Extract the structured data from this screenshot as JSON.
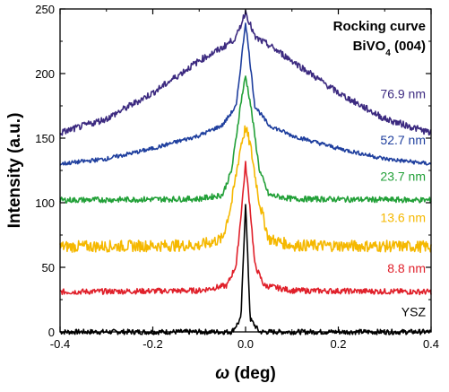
{
  "chart_data": {
    "type": "line",
    "title_line1": "Rocking curve",
    "title_line2_main": "BiVO",
    "title_line2_sub": "4",
    "title_line2_tail": " (004)",
    "xlabel_symbol": "ω",
    "xlabel_unit": " (deg)",
    "ylabel": "Intensity (a.u.)",
    "xlim": [
      -0.4,
      0.4
    ],
    "ylim": [
      0,
      250
    ],
    "x_ticks": [
      -0.4,
      -0.2,
      0.0,
      0.2,
      0.4
    ],
    "x_tick_labels": [
      "-0.4",
      "-0.2",
      "0.0",
      "0.2",
      "0.4"
    ],
    "y_ticks": [
      0,
      50,
      100,
      150,
      200,
      250
    ],
    "y_tick_labels": [
      "0",
      "50",
      "100",
      "150",
      "200",
      "250"
    ],
    "series": [
      {
        "name": "YSZ",
        "color": "#000000",
        "baseline": 0,
        "x": [
          -0.4,
          -0.03,
          -0.01,
          -0.005,
          0.0,
          0.005,
          0.01,
          0.03,
          0.4
        ],
        "y": [
          0,
          0,
          10,
          55,
          100,
          55,
          10,
          0,
          0
        ],
        "label": "YSZ"
      },
      {
        "name": "8.8 nm",
        "color": "#e0202a",
        "baseline": 31,
        "x": [
          -0.4,
          -0.1,
          -0.04,
          -0.02,
          -0.01,
          0.0,
          0.01,
          0.02,
          0.04,
          0.1,
          0.4
        ],
        "y": [
          31,
          32,
          36,
          52,
          90,
          130,
          95,
          52,
          36,
          32,
          31
        ],
        "label": "8.8 nm"
      },
      {
        "name": "13.6 nm",
        "color": "#f5b800",
        "baseline": 66,
        "x": [
          -0.4,
          -0.1,
          -0.05,
          -0.03,
          -0.01,
          0.0,
          0.01,
          0.03,
          0.05,
          0.1,
          0.4
        ],
        "y": [
          66,
          67,
          72,
          100,
          145,
          158,
          145,
          100,
          72,
          67,
          66
        ],
        "label": "13.6 nm"
      },
      {
        "name": "23.7 nm",
        "color": "#22a038",
        "baseline": 102,
        "x": [
          -0.4,
          -0.1,
          -0.05,
          -0.03,
          -0.01,
          0.0,
          0.01,
          0.03,
          0.05,
          0.1,
          0.4
        ],
        "y": [
          102,
          103,
          106,
          125,
          178,
          198,
          178,
          125,
          106,
          103,
          102
        ],
        "label": "23.7 nm"
      },
      {
        "name": "52.7 nm",
        "color": "#1f3f9e",
        "baseline": 130,
        "x": [
          -0.4,
          -0.3,
          -0.2,
          -0.1,
          -0.05,
          -0.02,
          0.0,
          0.02,
          0.05,
          0.1,
          0.2,
          0.3,
          0.4
        ],
        "y": [
          130,
          134,
          142,
          152,
          160,
          175,
          240,
          175,
          160,
          152,
          142,
          134,
          130
        ],
        "label": "52.7 nm"
      },
      {
        "name": "76.9 nm",
        "color": "#3c2a80",
        "baseline": 154,
        "x": [
          -0.4,
          -0.3,
          -0.2,
          -0.1,
          -0.05,
          -0.02,
          0.0,
          0.02,
          0.05,
          0.1,
          0.2,
          0.3,
          0.4
        ],
        "y": [
          154,
          165,
          185,
          210,
          220,
          228,
          248,
          228,
          222,
          210,
          185,
          165,
          154
        ],
        "label": "76.9 nm"
      }
    ]
  }
}
